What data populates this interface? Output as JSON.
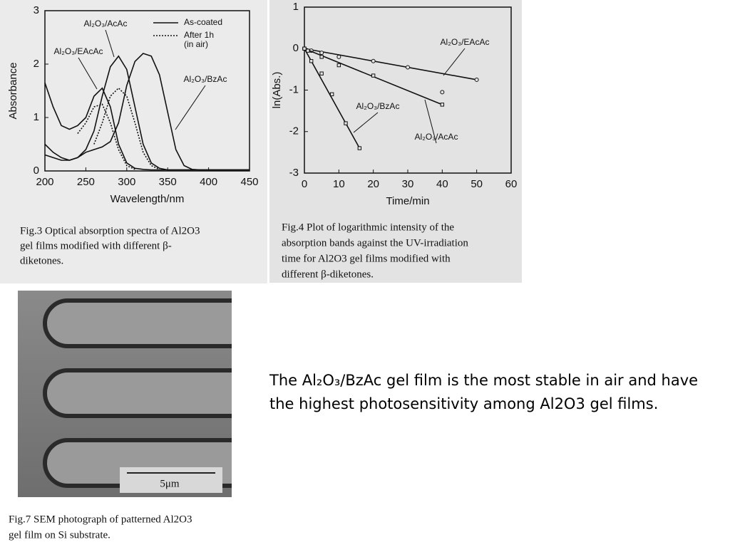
{
  "chart_data": [
    {
      "type": "line",
      "x_label": "Wavelength/nm",
      "y_label": "Absorbance",
      "xlim": [
        200,
        450
      ],
      "xticks": [
        200,
        250,
        300,
        350,
        400,
        450
      ],
      "ylim": [
        0,
        3
      ],
      "yticks": [
        0,
        1,
        2,
        3
      ],
      "x": [
        200,
        210,
        220,
        230,
        240,
        250,
        260,
        270,
        280,
        290,
        300,
        310,
        320,
        330,
        340,
        350,
        360,
        370,
        380,
        390,
        400,
        410,
        420,
        430,
        440,
        450
      ],
      "legend": [
        {
          "label": [
            "As-coated"
          ],
          "style": "solid"
        },
        {
          "label": [
            "After 1h",
            "(in air)"
          ],
          "style": "dotted"
        }
      ],
      "series": [
        {
          "name": "Al₂O₃/AcAc",
          "style": "solid",
          "color": "#111111",
          "values": [
            0.5,
            0.35,
            0.25,
            0.2,
            0.25,
            0.4,
            0.75,
            1.4,
            1.95,
            2.15,
            1.9,
            1.2,
            0.5,
            0.15,
            0.05,
            0.02,
            0.02,
            0.02,
            0.02,
            0.02,
            0.02,
            0.02,
            0.02,
            0.02,
            0.02,
            0.02
          ]
        },
        {
          "name": "Al₂O₃/EAcAc",
          "style": "solid",
          "color": "#111111",
          "values": [
            1.65,
            1.2,
            0.85,
            0.78,
            0.85,
            1.0,
            1.4,
            1.55,
            1.2,
            0.5,
            0.15,
            0.05,
            0.03,
            0.02,
            0.02,
            0.02,
            0.02,
            0.02,
            0.02,
            0.02,
            0.02,
            0.02,
            0.02,
            0.02,
            0.02,
            0.02
          ]
        },
        {
          "name": "Al₂O₃/BzAc",
          "style": "solid",
          "color": "#111111",
          "values": [
            0.3,
            0.25,
            0.2,
            0.2,
            0.25,
            0.35,
            0.4,
            0.45,
            0.55,
            0.9,
            1.6,
            2.05,
            2.2,
            2.15,
            1.8,
            1.1,
            0.4,
            0.1,
            0.03,
            0.02,
            0.02,
            0.02,
            0.02,
            0.02,
            0.02,
            0.02
          ]
        },
        {
          "style": "dotted",
          "color": "#111111",
          "values": [
            null,
            null,
            null,
            null,
            0.7,
            0.9,
            1.2,
            1.25,
            0.9,
            0.4,
            0.1,
            0.03,
            null,
            null,
            null,
            null,
            null,
            null,
            null,
            null,
            null,
            null,
            null,
            null,
            null,
            null
          ]
        },
        {
          "style": "dotted",
          "color": "#111111",
          "values": [
            null,
            null,
            null,
            null,
            null,
            null,
            0.5,
            0.9,
            1.4,
            1.55,
            1.4,
            0.9,
            0.35,
            0.1,
            0.03,
            null,
            null,
            null,
            null,
            null,
            null,
            null,
            null,
            null,
            null,
            null
          ]
        }
      ],
      "caption": [
        "Fig.3   Optical absorption spectra of Al2O3",
        "gel films modified with different β-",
        "diketones."
      ]
    },
    {
      "type": "scatter",
      "x_label": "Time/min",
      "y_label": "ln(Abs.)",
      "xlim": [
        0,
        60
      ],
      "xticks": [
        0,
        10,
        20,
        30,
        40,
        50,
        60
      ],
      "ylim": [
        -3,
        1
      ],
      "yticks": [
        -3,
        -2,
        -1,
        0,
        1
      ],
      "series": [
        {
          "name": "Al₂O₃/EAcAc",
          "marker": "circle",
          "color": "#111111",
          "x": [
            0,
            2,
            5,
            10,
            20,
            30,
            40,
            50
          ],
          "values": [
            0,
            -0.05,
            -0.1,
            -0.2,
            -0.3,
            -0.45,
            -1.05,
            -0.75
          ]
        },
        {
          "name": "Al₂O₃/BzAc",
          "marker": "square",
          "color": "#111111",
          "x": [
            0,
            2,
            5,
            8,
            12,
            16
          ],
          "values": [
            0,
            -0.3,
            -0.6,
            -1.1,
            -1.8,
            -2.4
          ]
        },
        {
          "name": "Al₂O₃/AcAc",
          "marker": "square",
          "color": "#111111",
          "x": [
            0,
            1,
            5,
            10,
            20,
            40
          ],
          "values": [
            0,
            -0.05,
            -0.2,
            -0.4,
            -0.65,
            -1.35
          ]
        }
      ],
      "caption": [
        "Fig.4   Plot of logarithmic intensity of the",
        "absorption bands against the UV-irradiation",
        "time for Al2O3   gel films modified with",
        "different β-diketones."
      ]
    }
  ],
  "sem": {
    "scale_label": "5μm",
    "caption": [
      "Fig.7   SEM photograph of patterned Al2O3",
      "gel film on Si substrate."
    ]
  },
  "text": "The Al₂O₃/BzAc gel film is the most stable in air and have the highest photosensitivity among Al2O3 gel films."
}
